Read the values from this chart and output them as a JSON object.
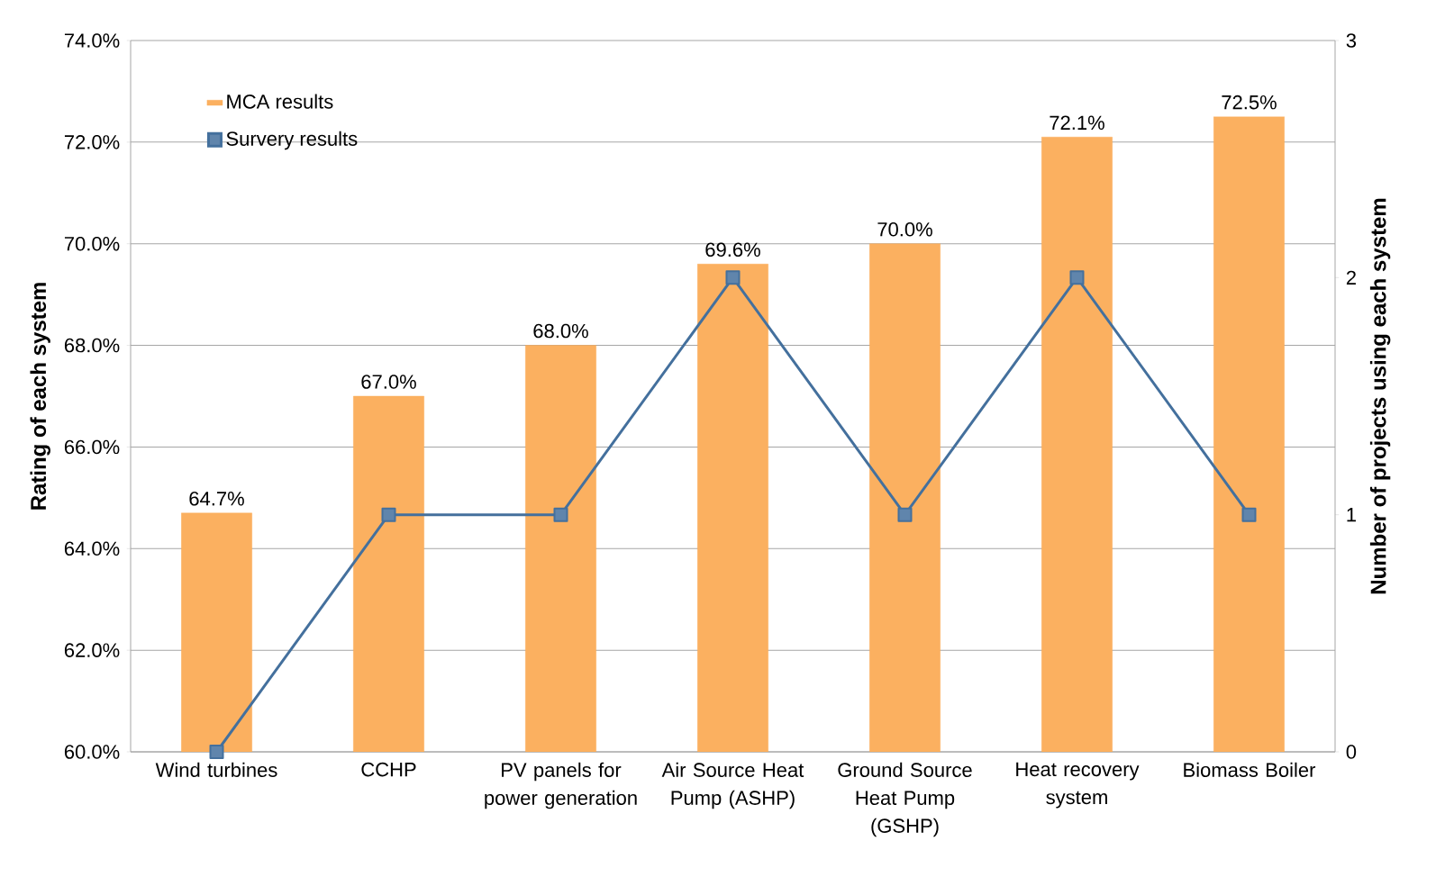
{
  "chart_data": {
    "type": "bar",
    "categories": [
      "Wind turbines",
      "CCHP",
      "PV panels for power generation",
      "Air Source Heat Pump (ASHP)",
      "Ground Source Heat Pump (GSHP)",
      "Heat recovery system",
      "Biomass Boiler"
    ],
    "series": [
      {
        "name": "MCA results",
        "color": "#fbb060",
        "values": [
          64.7,
          67.0,
          68.0,
          69.6,
          70.0,
          72.1,
          72.5
        ],
        "value_labels": [
          "64.7%",
          "67.0%",
          "68.0%",
          "69.6%",
          "70.0%",
          "72.1%",
          "72.5%"
        ]
      },
      {
        "name": "Survery results",
        "type": "line",
        "axis": "y2",
        "color": "#44709d",
        "values": [
          0,
          1,
          1,
          2,
          1,
          2,
          1
        ]
      }
    ],
    "ylabel": "Rating of each system",
    "y2label": "Number of projects using each system",
    "ylim": [
      60,
      74
    ],
    "yticks": [
      {
        "value": 60,
        "label": "60.0%"
      },
      {
        "value": 62,
        "label": "62.0%"
      },
      {
        "value": 64,
        "label": "64.0%"
      },
      {
        "value": 66,
        "label": "66.0%"
      },
      {
        "value": 68,
        "label": "68.0%"
      },
      {
        "value": 70,
        "label": "70.0%"
      },
      {
        "value": 72,
        "label": "72.0%"
      },
      {
        "value": 74,
        "label": "74.0%"
      }
    ],
    "y2lim": [
      0,
      3
    ],
    "y2ticks": [
      0,
      1,
      2,
      3
    ],
    "grid": "y",
    "legend": "top left",
    "marker": "square"
  }
}
